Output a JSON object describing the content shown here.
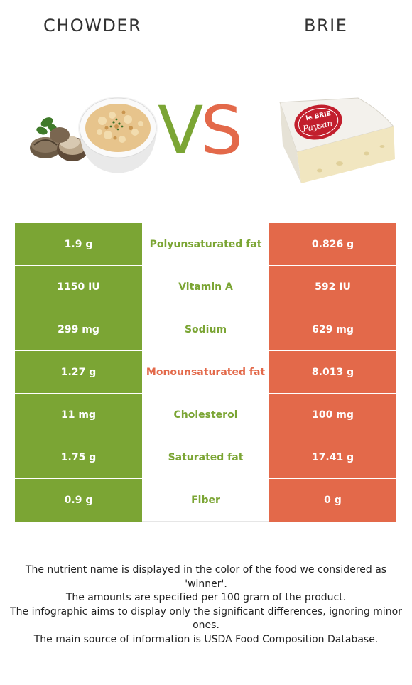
{
  "titles": {
    "left": "CHOWDER",
    "right": "BRIE"
  },
  "vs": {
    "v": "V",
    "s": "S"
  },
  "colors": {
    "chowder": "#7ba534",
    "brie": "#e3694a"
  },
  "logo": {
    "line1": "le BRIE",
    "line2": "Paysan"
  },
  "rows": [
    {
      "left": "1.9 g",
      "name": "Polyunsaturated fat",
      "right": "0.826 g",
      "winner": "chowder"
    },
    {
      "left": "1150 IU",
      "name": "Vitamin A",
      "right": "592 IU",
      "winner": "chowder"
    },
    {
      "left": "299 mg",
      "name": "Sodium",
      "right": "629 mg",
      "winner": "chowder"
    },
    {
      "left": "1.27 g",
      "name": "Monounsaturated fat",
      "right": "8.013 g",
      "winner": "brie"
    },
    {
      "left": "11 mg",
      "name": "Cholesterol",
      "right": "100 mg",
      "winner": "chowder"
    },
    {
      "left": "1.75 g",
      "name": "Saturated fat",
      "right": "17.41 g",
      "winner": "chowder"
    },
    {
      "left": "0.9 g",
      "name": "Fiber",
      "right": "0 g",
      "winner": "chowder"
    }
  ],
  "notes": [
    "The nutrient name is displayed in the color of the food we considered as 'winner'.",
    "The amounts are specified per 100 gram of the product.",
    "The infographic aims to display only the significant differences, ignoring minor ones.",
    "The main source of information is USDA Food Composition Database."
  ]
}
